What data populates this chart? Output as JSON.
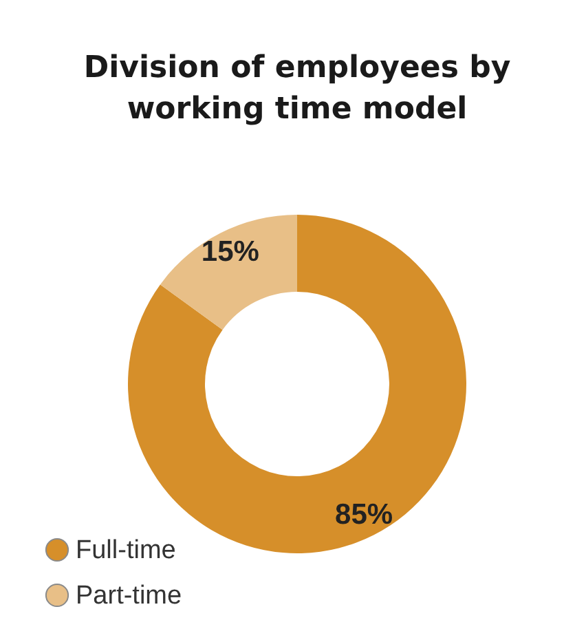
{
  "chart_data": {
    "type": "donut",
    "title": "Division of employees by\nworking time model",
    "categories": [
      "Full-time",
      "Part-time"
    ],
    "values": [
      85,
      15
    ],
    "colors": [
      "#d68f2a",
      "#e8bf87"
    ],
    "value_labels": [
      "85%",
      "15%"
    ],
    "legend": "bottom left"
  }
}
